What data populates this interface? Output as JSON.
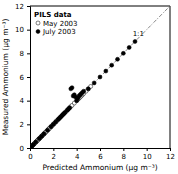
{
  "chart_data": {
    "type": "scatter",
    "xlabel": "Predicted Ammonium (μg m⁻³)",
    "ylabel": "Measured Ammonium (μg m⁻³)",
    "xlim": [
      0,
      12
    ],
    "ylim": [
      0,
      12
    ],
    "xticks": [
      0,
      2,
      4,
      6,
      8,
      10,
      12
    ],
    "yticks": [
      0,
      2,
      4,
      6,
      8,
      10,
      12
    ],
    "grid": false,
    "legend": "upper-left",
    "legend_title": "PILS data",
    "series": [
      {
        "name": "May 2003",
        "color": "black",
        "marker": "circle-open",
        "x": [
          0.08,
          0.1,
          0.12,
          0.15,
          0.18,
          0.2,
          0.22,
          0.25,
          0.28,
          0.3,
          0.35,
          0.4,
          0.45,
          0.5,
          0.55,
          0.6,
          0.65,
          0.7,
          0.75,
          0.8,
          0.85,
          0.9,
          0.95,
          1.0,
          1.05,
          1.1,
          1.15,
          1.2,
          1.25,
          1.3,
          1.35,
          1.4,
          1.5,
          1.55,
          1.6,
          1.65,
          1.7,
          1.8,
          1.85,
          1.9,
          2.0,
          2.05,
          2.1,
          2.2,
          2.25,
          2.3,
          2.4,
          2.5,
          2.6,
          2.7,
          2.8,
          2.9,
          3.0,
          3.1,
          3.2,
          3.3,
          3.4,
          3.5,
          3.6,
          3.8,
          4.0,
          4.1,
          4.2,
          4.3,
          4.4,
          4.5,
          4.6,
          4.8,
          5.0,
          5.2
        ],
        "values": [
          0.08,
          0.1,
          0.12,
          0.15,
          0.18,
          0.2,
          0.22,
          0.25,
          0.28,
          0.3,
          0.35,
          0.4,
          0.45,
          0.5,
          0.55,
          0.6,
          0.65,
          0.7,
          0.75,
          0.8,
          0.85,
          0.9,
          0.95,
          1.0,
          1.05,
          1.1,
          1.15,
          1.2,
          1.25,
          1.3,
          1.35,
          1.4,
          1.5,
          1.55,
          1.6,
          1.65,
          1.7,
          1.8,
          1.85,
          1.9,
          2.0,
          2.05,
          2.1,
          2.2,
          2.25,
          2.3,
          2.4,
          2.5,
          2.6,
          2.7,
          2.8,
          2.9,
          3.0,
          3.1,
          3.2,
          3.3,
          3.4,
          3.5,
          3.6,
          3.8,
          4.0,
          4.1,
          4.2,
          4.3,
          4.4,
          4.5,
          4.6,
          4.8,
          5.0,
          5.2
        ]
      },
      {
        "name": "July 2003",
        "color": "black",
        "marker": "circle",
        "x": [
          0.15,
          0.3,
          0.5,
          0.8,
          1.0,
          1.2,
          1.5,
          1.8,
          2.0,
          2.2,
          2.4,
          2.5,
          2.6,
          2.7,
          2.8,
          2.9,
          3.0,
          3.2,
          3.3,
          3.4,
          3.5,
          3.6,
          3.7,
          3.8,
          3.9,
          4.0,
          4.1,
          4.2,
          4.3,
          4.4,
          4.5,
          4.6,
          5.0,
          5.5,
          6.0,
          6.5,
          7.0,
          7.5,
          8.0,
          8.5,
          9.0
        ],
        "values": [
          0.15,
          0.3,
          0.5,
          0.8,
          1.0,
          1.2,
          1.5,
          1.8,
          2.0,
          2.2,
          2.4,
          2.5,
          2.6,
          2.7,
          2.8,
          2.9,
          3.0,
          3.2,
          3.3,
          3.4,
          5.0,
          5.1,
          4.4,
          4.5,
          4.3,
          4.0,
          4.2,
          4.4,
          4.5,
          4.6,
          4.7,
          4.8,
          5.0,
          5.5,
          6.0,
          6.5,
          7.0,
          7.5,
          8.0,
          8.5,
          9.0
        ]
      },
      {
        "type": "line",
        "color": "#888888",
        "line_style": "dashdot",
        "x": [
          0,
          12
        ],
        "values": [
          0,
          12
        ]
      }
    ],
    "annotations": [
      {
        "text": "1:1",
        "x": 8.8,
        "y": 9.5
      }
    ]
  }
}
